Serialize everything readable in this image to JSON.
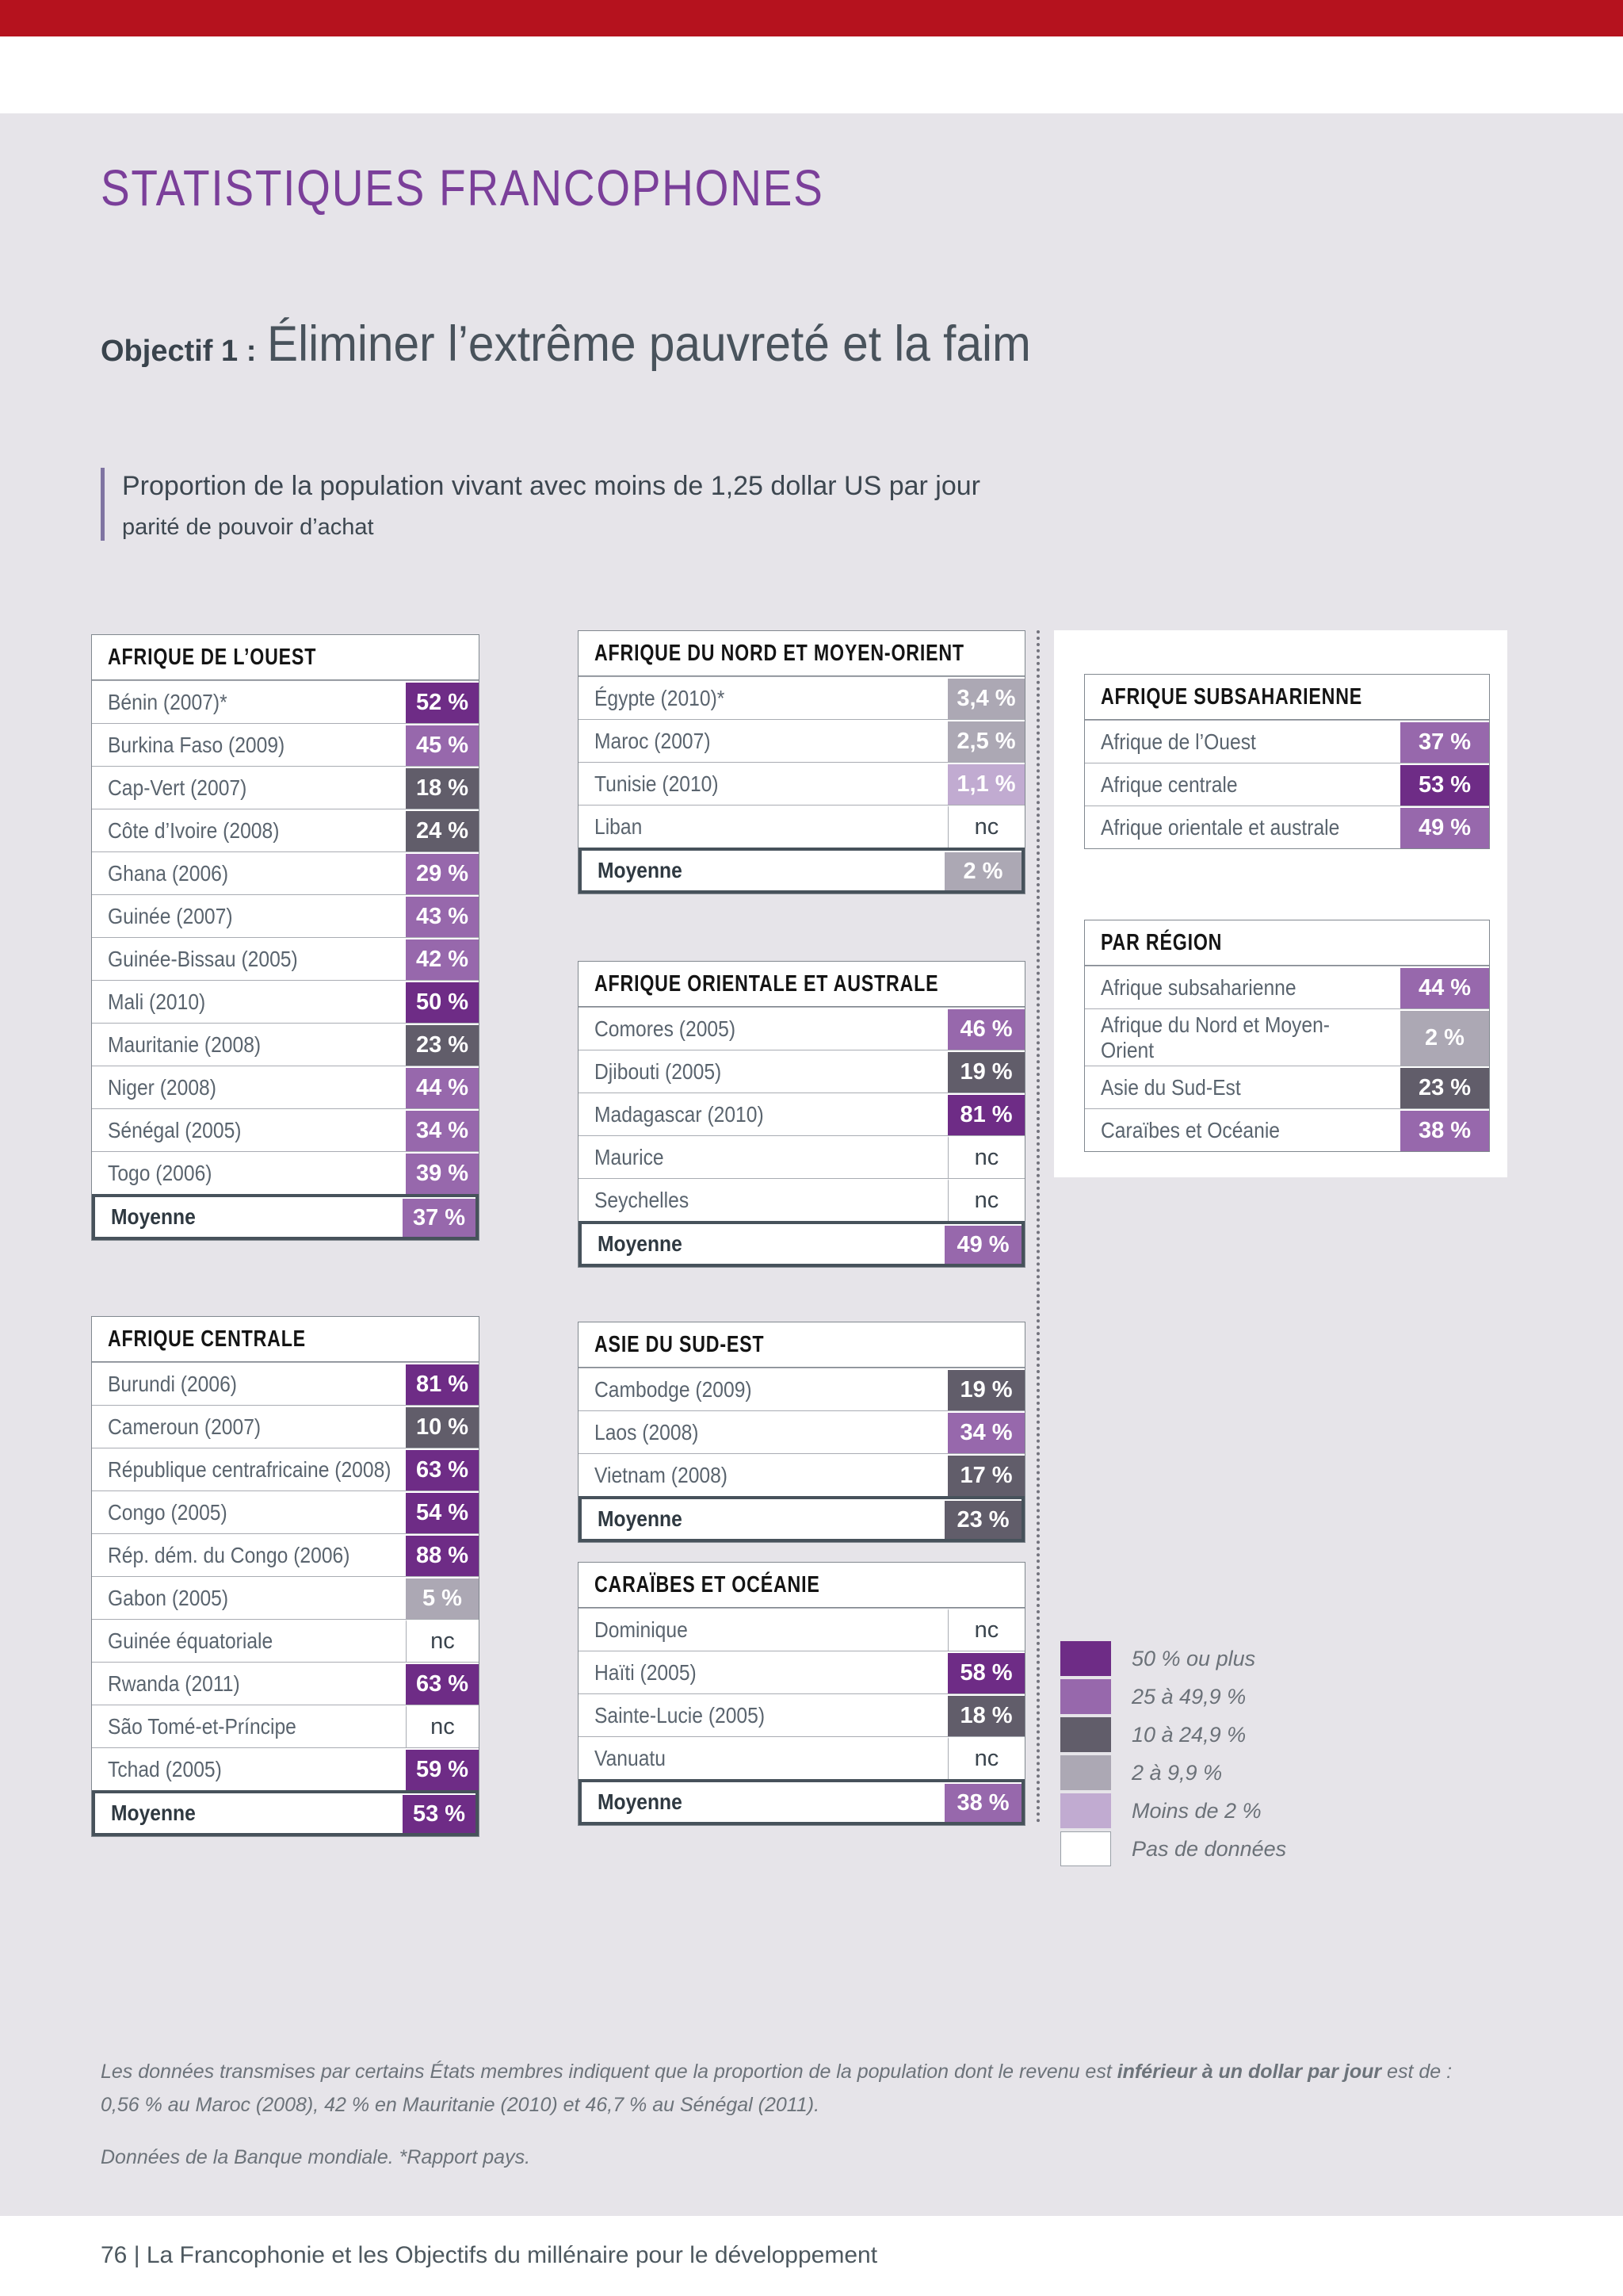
{
  "page": {
    "title": "STATISTIQUES FRANCOPHONES",
    "objective_label": "Objectif 1 :",
    "objective_title": "Éliminer l’extrême pauvreté et la faim",
    "subtitle_line1": "Proportion de la population vivant avec moins de 1,25 dollar US par jour",
    "subtitle_line2": "parité de pouvoir d’achat",
    "footer": "76 | La Francophonie et les Objectifs du millénaire pour le développement"
  },
  "notes": {
    "p1_pre": "Les données transmises par certains États membres indiquent que la proportion de la population dont le revenu est ",
    "p1_bold": "inférieur à un dollar par jour",
    "p1_post": " est de :",
    "p1_line2": "0,56 % au Maroc (2008), 42 % en Mauritanie (2010) et 46,7 % au Sénégal (2011).",
    "p2": "Données de la Banque mondiale. *Rapport pays."
  },
  "palette": {
    "p50": "#6e2c86",
    "p25": "#9768ac",
    "p10": "#615d6a",
    "p2": "#aca8b4",
    "lt2": "#c1abd1",
    "nc": "#ffffff"
  },
  "legend": [
    {
      "label": "50 % ou plus",
      "band": "p50"
    },
    {
      "label": "25 à 49,9 %",
      "band": "p25"
    },
    {
      "label": "10 à 24,9 %",
      "band": "p10"
    },
    {
      "label": "2 à 9,9 %",
      "band": "p2"
    },
    {
      "label": "Moins de 2 %",
      "band": "lt2"
    },
    {
      "label": "Pas de données",
      "band": "nc"
    }
  ],
  "tables": [
    {
      "key": "ouest",
      "title": "AFRIQUE DE L’OUEST",
      "rows": [
        {
          "label": "Bénin (2007)*",
          "value": "52 %",
          "band": "p50"
        },
        {
          "label": "Burkina Faso (2009)",
          "value": "45 %",
          "band": "p25"
        },
        {
          "label": "Cap-Vert (2007)",
          "value": "18 %",
          "band": "p10"
        },
        {
          "label": "Côte d’Ivoire (2008)",
          "value": "24 %",
          "band": "p10"
        },
        {
          "label": "Ghana (2006)",
          "value": "29 %",
          "band": "p25"
        },
        {
          "label": "Guinée (2007)",
          "value": "43 %",
          "band": "p25"
        },
        {
          "label": "Guinée-Bissau (2005)",
          "value": "42 %",
          "band": "p25"
        },
        {
          "label": "Mali (2010)",
          "value": "50 %",
          "band": "p50"
        },
        {
          "label": "Mauritanie (2008)",
          "value": "23 %",
          "band": "p10"
        },
        {
          "label": "Niger (2008)",
          "value": "44 %",
          "band": "p25"
        },
        {
          "label": "Sénégal (2005)",
          "value": "34 %",
          "band": "p25"
        },
        {
          "label": "Togo (2006)",
          "value": "39 %",
          "band": "p25"
        },
        {
          "label": "Moyenne",
          "value": "37 %",
          "band": "p25"
        }
      ]
    },
    {
      "key": "centrale",
      "title": "AFRIQUE CENTRALE",
      "rows": [
        {
          "label": "Burundi (2006)",
          "value": "81 %",
          "band": "p50"
        },
        {
          "label": "Cameroun (2007)",
          "value": "10 %",
          "band": "p10"
        },
        {
          "label": "République centrafricaine (2008)",
          "value": "63 %",
          "band": "p50"
        },
        {
          "label": "Congo (2005)",
          "value": "54 %",
          "band": "p50"
        },
        {
          "label": "Rép. dém. du Congo (2006)",
          "value": "88 %",
          "band": "p50"
        },
        {
          "label": "Gabon (2005)",
          "value": "5 %",
          "band": "p2"
        },
        {
          "label": "Guinée équatoriale",
          "value": "nc",
          "band": "nc"
        },
        {
          "label": "Rwanda (2011)",
          "value": "63 %",
          "band": "p50"
        },
        {
          "label": "São Tomé-et-Príncipe",
          "value": "nc",
          "band": "nc"
        },
        {
          "label": "Tchad (2005)",
          "value": "59 %",
          "band": "p50"
        },
        {
          "label": "Moyenne",
          "value": "53 %",
          "band": "p50"
        }
      ]
    },
    {
      "key": "nord",
      "title": "AFRIQUE DU NORD ET MOYEN-ORIENT",
      "rows": [
        {
          "label": "Égypte (2010)*",
          "value": "3,4 %",
          "band": "p2"
        },
        {
          "label": "Maroc (2007)",
          "value": "2,5 %",
          "band": "p2"
        },
        {
          "label": "Tunisie (2010)",
          "value": "1,1 %",
          "band": "lt2"
        },
        {
          "label": "Liban",
          "value": "nc",
          "band": "nc"
        },
        {
          "label": "Moyenne",
          "value": "2 %",
          "band": "p2"
        }
      ]
    },
    {
      "key": "orientale",
      "title": "AFRIQUE ORIENTALE ET AUSTRALE",
      "rows": [
        {
          "label": "Comores (2005)",
          "value": "46 %",
          "band": "p25"
        },
        {
          "label": "Djibouti (2005)",
          "value": "19 %",
          "band": "p10"
        },
        {
          "label": "Madagascar (2010)",
          "value": "81 %",
          "band": "p50"
        },
        {
          "label": "Maurice",
          "value": "nc",
          "band": "nc"
        },
        {
          "label": "Seychelles",
          "value": "nc",
          "band": "nc"
        },
        {
          "label": "Moyenne",
          "value": "49 %",
          "band": "p25"
        }
      ]
    },
    {
      "key": "asie",
      "title": "ASIE DU SUD-EST",
      "rows": [
        {
          "label": "Cambodge (2009)",
          "value": "19 %",
          "band": "p10"
        },
        {
          "label": "Laos (2008)",
          "value": "34 %",
          "band": "p25"
        },
        {
          "label": "Vietnam (2008)",
          "value": "17 %",
          "band": "p10"
        },
        {
          "label": "Moyenne",
          "value": "23 %",
          "band": "p10"
        }
      ]
    },
    {
      "key": "caraibes",
      "title": "CARAÏBES ET OCÉANIE",
      "rows": [
        {
          "label": "Dominique",
          "value": "nc",
          "band": "nc"
        },
        {
          "label": "Haïti (2005)",
          "value": "58 %",
          "band": "p50"
        },
        {
          "label": "Sainte-Lucie (2005)",
          "value": "18 %",
          "band": "p10"
        },
        {
          "label": "Vanuatu",
          "value": "nc",
          "band": "nc"
        },
        {
          "label": "Moyenne",
          "value": "38 %",
          "band": "p25"
        }
      ]
    },
    {
      "key": "subsaharienne",
      "title": "AFRIQUE SUBSAHARIENNE",
      "rows": [
        {
          "label": "Afrique de l’Ouest",
          "value": "37 %",
          "band": "p25"
        },
        {
          "label": "Afrique centrale",
          "value": "53 %",
          "band": "p50"
        },
        {
          "label": "Afrique orientale et australe",
          "value": "49 %",
          "band": "p25"
        }
      ]
    },
    {
      "key": "region",
      "title": "PAR RÉGION",
      "rows": [
        {
          "label": "Afrique subsaharienne",
          "value": "44 %",
          "band": "p25"
        },
        {
          "label": "Afrique du Nord et Moyen-Orient",
          "value": "2 %",
          "band": "p2"
        },
        {
          "label": "Asie du Sud-Est",
          "value": "23 %",
          "band": "p10"
        },
        {
          "label": "Caraïbes et Océanie",
          "value": "38 %",
          "band": "p25"
        }
      ]
    }
  ]
}
